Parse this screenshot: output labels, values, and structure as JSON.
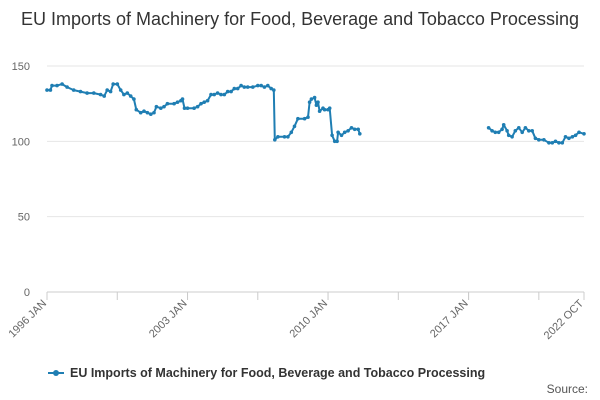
{
  "chart_data": {
    "type": "line",
    "title": "EU Imports of Machinery for Food, Beverage and Tobacco Processing",
    "xlabel": "",
    "ylabel": "",
    "ylim": [
      0,
      150
    ],
    "xlim": [
      1996.0,
      2022.75
    ],
    "y_ticks": [
      "0",
      "50",
      "100",
      "150"
    ],
    "x_ticks": [
      {
        "value": 1996.0,
        "label": "1996 JAN"
      },
      {
        "value": 2003.0,
        "label": "2003 JAN"
      },
      {
        "value": 2010.0,
        "label": "2010 JAN"
      },
      {
        "value": 2017.0,
        "label": "2017 JAN"
      },
      {
        "value": 2022.75,
        "label": "2022 OCT"
      }
    ],
    "grid": true,
    "legend_position": "bottom",
    "series": [
      {
        "name": "EU Imports of Machinery for Food, Beverage and Tobacco Processing",
        "color": "#1f7eb3",
        "segments": [
          [
            [
              1996.0,
              134
            ],
            [
              1996.17,
              134
            ],
            [
              1996.25,
              137
            ],
            [
              1996.5,
              137
            ],
            [
              1996.75,
              138
            ],
            [
              1997.0,
              136
            ],
            [
              1997.33,
              134
            ],
            [
              1997.67,
              133
            ],
            [
              1998.0,
              132
            ],
            [
              1998.33,
              132
            ],
            [
              1998.67,
              131
            ],
            [
              1998.85,
              130
            ],
            [
              1999.0,
              134
            ],
            [
              1999.17,
              133
            ],
            [
              1999.3,
              138
            ],
            [
              1999.5,
              138
            ],
            [
              1999.67,
              134
            ],
            [
              1999.83,
              131
            ],
            [
              2000.0,
              132
            ],
            [
              2000.17,
              130
            ],
            [
              2000.33,
              128
            ],
            [
              2000.45,
              121
            ],
            [
              2000.67,
              119
            ],
            [
              2000.83,
              120
            ],
            [
              2001.0,
              119
            ],
            [
              2001.17,
              118
            ],
            [
              2001.33,
              119
            ],
            [
              2001.45,
              123
            ],
            [
              2001.67,
              122
            ],
            [
              2001.83,
              123
            ],
            [
              2002.0,
              125
            ],
            [
              2002.33,
              125
            ],
            [
              2002.5,
              126
            ],
            [
              2002.67,
              127
            ],
            [
              2002.75,
              128
            ],
            [
              2002.85,
              122
            ],
            [
              2003.0,
              122
            ],
            [
              2003.33,
              122
            ],
            [
              2003.5,
              123
            ],
            [
              2003.67,
              125
            ],
            [
              2003.83,
              126
            ],
            [
              2004.0,
              127
            ],
            [
              2004.17,
              131
            ],
            [
              2004.33,
              131
            ],
            [
              2004.5,
              132
            ],
            [
              2004.67,
              131
            ],
            [
              2004.83,
              131
            ],
            [
              2005.0,
              133
            ],
            [
              2005.17,
              133
            ],
            [
              2005.33,
              135
            ],
            [
              2005.5,
              135
            ],
            [
              2005.67,
              137
            ],
            [
              2005.83,
              136
            ],
            [
              2006.0,
              136
            ],
            [
              2006.25,
              136
            ],
            [
              2006.5,
              137
            ],
            [
              2006.67,
              137
            ],
            [
              2006.83,
              136
            ],
            [
              2007.0,
              137
            ],
            [
              2007.17,
              135
            ],
            [
              2007.3,
              134
            ],
            [
              2007.35,
              101
            ],
            [
              2007.5,
              103
            ],
            [
              2007.83,
              103
            ],
            [
              2008.0,
              103
            ],
            [
              2008.17,
              106
            ],
            [
              2008.33,
              110
            ],
            [
              2008.5,
              115
            ],
            [
              2008.83,
              115
            ],
            [
              2009.0,
              116
            ],
            [
              2009.08,
              126
            ],
            [
              2009.17,
              128
            ],
            [
              2009.33,
              129
            ],
            [
              2009.42,
              124
            ],
            [
              2009.5,
              126
            ],
            [
              2009.58,
              120
            ],
            [
              2009.75,
              122
            ],
            [
              2009.83,
              121
            ],
            [
              2010.0,
              121
            ],
            [
              2010.08,
              122
            ],
            [
              2010.2,
              104
            ],
            [
              2010.33,
              100
            ],
            [
              2010.45,
              100
            ],
            [
              2010.5,
              106
            ],
            [
              2010.67,
              104
            ],
            [
              2010.83,
              106
            ],
            [
              2011.0,
              107
            ],
            [
              2011.17,
              109
            ],
            [
              2011.33,
              108
            ],
            [
              2011.5,
              108
            ],
            [
              2011.58,
              105
            ]
          ],
          [
            [
              2018.0,
              109
            ],
            [
              2018.17,
              107
            ],
            [
              2018.33,
              106
            ],
            [
              2018.5,
              106
            ],
            [
              2018.67,
              108
            ],
            [
              2018.75,
              111
            ],
            [
              2018.92,
              107
            ],
            [
              2019.0,
              104
            ],
            [
              2019.17,
              103
            ],
            [
              2019.33,
              107
            ],
            [
              2019.5,
              109
            ],
            [
              2019.67,
              106
            ],
            [
              2019.83,
              109
            ],
            [
              2020.0,
              107
            ],
            [
              2020.17,
              107
            ],
            [
              2020.33,
              102
            ],
            [
              2020.5,
              101
            ],
            [
              2020.75,
              101
            ],
            [
              2021.0,
              99
            ],
            [
              2021.17,
              99
            ],
            [
              2021.33,
              100
            ],
            [
              2021.5,
              99
            ],
            [
              2021.67,
              99
            ],
            [
              2021.83,
              103
            ],
            [
              2022.0,
              102
            ],
            [
              2022.17,
              103
            ],
            [
              2022.33,
              104
            ],
            [
              2022.5,
              106
            ],
            [
              2022.75,
              105
            ]
          ]
        ]
      }
    ]
  },
  "source_label": "Source:"
}
